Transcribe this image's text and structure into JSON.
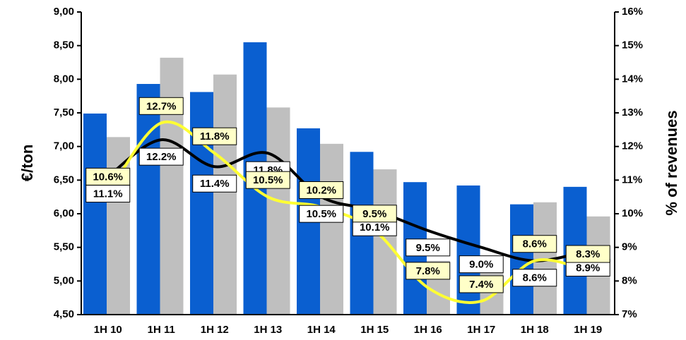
{
  "chart_data": {
    "type": "bar_line",
    "categories": [
      "1H 10",
      "1H 11",
      "1H 12",
      "1H 13",
      "1H 14",
      "1H 15",
      "1H 16",
      "1H 17",
      "1H 18",
      "1H 19"
    ],
    "ylabel": "€/ton",
    "y2label": "% of revenues",
    "ylim": [
      4.5,
      9
    ],
    "yticks": [
      {
        "value": 4.5,
        "label": "4,50"
      },
      {
        "value": 5,
        "label": "5,00"
      },
      {
        "value": 5.5,
        "label": "5,50"
      },
      {
        "value": 6,
        "label": "6,00"
      },
      {
        "value": 6.5,
        "label": "6,50"
      },
      {
        "value": 7,
        "label": "7,00"
      },
      {
        "value": 7.5,
        "label": "7,50"
      },
      {
        "value": 8,
        "label": "8,00"
      },
      {
        "value": 8.5,
        "label": "8,50"
      },
      {
        "value": 9,
        "label": "9,00"
      }
    ],
    "y2lim": [
      7,
      16
    ],
    "y2ticks": [
      {
        "value": 7,
        "label": "7%"
      },
      {
        "value": 8,
        "label": "8%"
      },
      {
        "value": 9,
        "label": "9%"
      },
      {
        "value": 10,
        "label": "10%"
      },
      {
        "value": 11,
        "label": "11%"
      },
      {
        "value": 12,
        "label": "12%"
      },
      {
        "value": 13,
        "label": "13%"
      },
      {
        "value": 14,
        "label": "14%"
      },
      {
        "value": 15,
        "label": "15%"
      },
      {
        "value": 16,
        "label": "16%"
      }
    ],
    "series": [
      {
        "type": "bar",
        "color": "#0a5fd0",
        "values": [
          7.49,
          7.93,
          7.81,
          8.55,
          7.27,
          6.92,
          6.47,
          6.42,
          6.14,
          6.4
        ]
      },
      {
        "type": "bar",
        "color": "#bfbfbf",
        "values": [
          7.14,
          8.32,
          8.07,
          7.58,
          7.04,
          6.66,
          5.3,
          5.32,
          6.17,
          5.96
        ]
      },
      {
        "type": "line",
        "axis": "y2",
        "color": "#000000",
        "values": [
          11.1,
          12.2,
          11.4,
          11.8,
          10.5,
          10.1,
          9.5,
          9.0,
          8.6,
          8.9
        ],
        "value_labels": [
          "11.1%",
          "12.2%",
          "11.4%",
          "11.8%",
          "10.5%",
          "10.1%",
          "9.5%",
          "9.0%",
          "8.6%",
          "8.9%"
        ]
      },
      {
        "type": "line",
        "axis": "y2",
        "color": "#ffff33",
        "values": [
          10.6,
          12.7,
          11.8,
          10.5,
          10.2,
          9.5,
          7.8,
          7.4,
          8.6,
          8.3
        ],
        "value_labels": [
          "10.6%",
          "12.7%",
          "11.8%",
          "10.5%",
          "10.2%",
          "9.5%",
          "7.8%",
          "7.4%",
          "8.6%",
          "8.3%"
        ]
      }
    ]
  }
}
